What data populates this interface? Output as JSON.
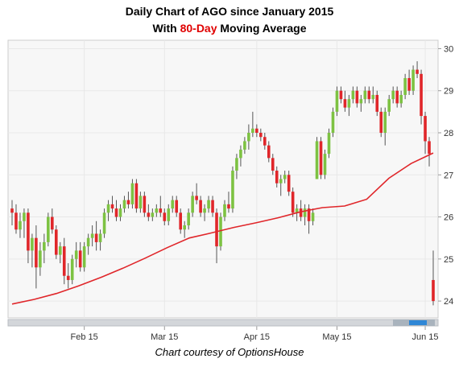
{
  "title_line1": "Daily Chart of AGO since January 2015",
  "title_line2_prefix": "With",
  "title_line2_highlight": "80-Day",
  "title_line2_suffix": "Moving Average",
  "credit": "Chart courtesy of OptionsHouse",
  "colors": {
    "up": "#7dc242",
    "down": "#e0262a",
    "moving_average": "#e0262a",
    "grid": "#e8e8e8",
    "plot_bg": "#f7f7f7",
    "title_highlight": "#e00000"
  },
  "chart_data": {
    "type": "candlestick",
    "ylim": [
      23.6,
      30.2
    ],
    "y_ticks": [
      24,
      25,
      26,
      27,
      28,
      29,
      30
    ],
    "x_ticks": [
      {
        "label": "Feb 15",
        "index": 18
      },
      {
        "label": "Mar 15",
        "index": 38
      },
      {
        "label": "Apr 15",
        "index": 61
      },
      {
        "label": "May 15",
        "index": 81
      },
      {
        "label": "Jun 15",
        "index": 103
      }
    ],
    "grid": true,
    "candles": [
      [
        26.2,
        26.4,
        25.8,
        26.1
      ],
      [
        26.1,
        26.3,
        25.6,
        25.7
      ],
      [
        25.7,
        26.1,
        25.5,
        25.9
      ],
      [
        25.9,
        26.2,
        25.5,
        26.1
      ],
      [
        26.1,
        26.2,
        24.9,
        25.2
      ],
      [
        25.2,
        25.6,
        24.8,
        25.5
      ],
      [
        25.5,
        25.8,
        24.3,
        24.8
      ],
      [
        24.8,
        25.4,
        24.6,
        25.2
      ],
      [
        25.2,
        25.6,
        24.9,
        25.4
      ],
      [
        25.4,
        26.1,
        25.3,
        26.0
      ],
      [
        26.0,
        26.2,
        25.6,
        25.7
      ],
      [
        25.7,
        25.8,
        25.0,
        25.1
      ],
      [
        25.1,
        25.4,
        24.9,
        25.3
      ],
      [
        25.3,
        25.5,
        24.4,
        24.6
      ],
      [
        24.6,
        24.9,
        24.3,
        24.5
      ],
      [
        24.5,
        25.1,
        24.4,
        25.0
      ],
      [
        25.0,
        25.4,
        24.8,
        25.2
      ],
      [
        25.2,
        25.4,
        24.7,
        24.8
      ],
      [
        24.8,
        25.4,
        24.7,
        25.3
      ],
      [
        25.3,
        25.6,
        25.1,
        25.5
      ],
      [
        25.5,
        25.8,
        25.3,
        25.6
      ],
      [
        25.6,
        25.9,
        25.2,
        25.4
      ],
      [
        25.4,
        25.7,
        25.2,
        25.6
      ],
      [
        25.6,
        26.2,
        25.5,
        26.1
      ],
      [
        26.1,
        26.4,
        25.9,
        26.3
      ],
      [
        26.3,
        26.5,
        26.1,
        26.2
      ],
      [
        26.2,
        26.4,
        25.9,
        26.0
      ],
      [
        26.0,
        26.3,
        25.9,
        26.2
      ],
      [
        26.2,
        26.5,
        26.1,
        26.4
      ],
      [
        26.4,
        26.6,
        26.2,
        26.3
      ],
      [
        26.3,
        26.9,
        26.2,
        26.8
      ],
      [
        26.8,
        26.9,
        26.1,
        26.2
      ],
      [
        26.2,
        26.6,
        26.1,
        26.5
      ],
      [
        26.5,
        26.6,
        26.0,
        26.1
      ],
      [
        26.1,
        26.3,
        25.9,
        26.0
      ],
      [
        26.0,
        26.2,
        25.9,
        26.1
      ],
      [
        26.1,
        26.3,
        26.0,
        26.2
      ],
      [
        26.2,
        26.5,
        26.0,
        26.1
      ],
      [
        26.1,
        26.2,
        25.8,
        25.9
      ],
      [
        25.9,
        26.3,
        25.8,
        26.2
      ],
      [
        26.2,
        26.5,
        26.1,
        26.4
      ],
      [
        26.4,
        26.5,
        26.0,
        26.1
      ],
      [
        26.1,
        26.2,
        25.6,
        25.7
      ],
      [
        25.7,
        25.9,
        25.5,
        25.8
      ],
      [
        25.8,
        26.2,
        25.7,
        26.1
      ],
      [
        26.1,
        26.6,
        26.0,
        26.5
      ],
      [
        26.5,
        26.8,
        26.3,
        26.4
      ],
      [
        26.4,
        26.5,
        26.0,
        26.1
      ],
      [
        26.1,
        26.3,
        25.9,
        26.2
      ],
      [
        26.2,
        26.5,
        26.1,
        26.4
      ],
      [
        26.4,
        26.5,
        26.0,
        26.1
      ],
      [
        26.1,
        26.2,
        24.9,
        25.3
      ],
      [
        25.3,
        26.1,
        25.2,
        26.0
      ],
      [
        26.0,
        26.4,
        25.9,
        26.3
      ],
      [
        26.3,
        26.6,
        26.1,
        26.2
      ],
      [
        26.2,
        27.2,
        26.1,
        27.1
      ],
      [
        27.1,
        27.5,
        26.9,
        27.4
      ],
      [
        27.4,
        27.7,
        27.2,
        27.6
      ],
      [
        27.6,
        27.9,
        27.5,
        27.8
      ],
      [
        27.8,
        28.2,
        27.6,
        28.0
      ],
      [
        28.0,
        28.5,
        27.9,
        28.1
      ],
      [
        28.1,
        28.2,
        27.9,
        28.0
      ],
      [
        28.0,
        28.1,
        27.8,
        27.9
      ],
      [
        27.9,
        28.0,
        27.6,
        27.7
      ],
      [
        27.7,
        27.8,
        27.3,
        27.4
      ],
      [
        27.4,
        27.5,
        27.0,
        27.1
      ],
      [
        27.1,
        27.2,
        26.7,
        26.8
      ],
      [
        26.8,
        27.0,
        26.5,
        26.9
      ],
      [
        26.9,
        27.1,
        26.8,
        27.0
      ],
      [
        27.0,
        27.1,
        26.5,
        26.6
      ],
      [
        26.6,
        26.7,
        26.0,
        26.1
      ],
      [
        26.1,
        26.3,
        25.9,
        26.2
      ],
      [
        26.2,
        26.4,
        25.9,
        26.0
      ],
      [
        26.0,
        26.3,
        25.8,
        26.2
      ],
      [
        26.2,
        26.3,
        25.6,
        25.9
      ],
      [
        25.9,
        26.2,
        25.8,
        26.1
      ],
      [
        26.9,
        27.9,
        26.9,
        27.8
      ],
      [
        27.8,
        27.9,
        26.9,
        27.0
      ],
      [
        27.0,
        27.6,
        26.9,
        27.5
      ],
      [
        27.5,
        28.1,
        27.4,
        28.0
      ],
      [
        28.0,
        28.6,
        27.9,
        28.5
      ],
      [
        28.5,
        29.1,
        28.4,
        29.0
      ],
      [
        29.0,
        29.1,
        28.7,
        28.8
      ],
      [
        28.8,
        29.0,
        28.5,
        28.6
      ],
      [
        28.6,
        28.9,
        28.4,
        28.8
      ],
      [
        28.8,
        29.1,
        28.7,
        29.0
      ],
      [
        29.0,
        29.1,
        28.6,
        28.7
      ],
      [
        28.7,
        28.9,
        28.5,
        28.8
      ],
      [
        28.8,
        29.1,
        28.7,
        29.0
      ],
      [
        29.0,
        29.1,
        28.7,
        28.8
      ],
      [
        28.8,
        29.1,
        28.7,
        28.9
      ],
      [
        28.9,
        29.0,
        28.4,
        28.5
      ],
      [
        28.5,
        28.6,
        27.9,
        28.0
      ],
      [
        28.0,
        28.6,
        27.7,
        28.5
      ],
      [
        28.5,
        28.9,
        28.4,
        28.8
      ],
      [
        28.8,
        29.1,
        28.7,
        29.0
      ],
      [
        29.0,
        29.1,
        28.6,
        28.7
      ],
      [
        28.7,
        29.0,
        28.6,
        28.9
      ],
      [
        28.9,
        29.4,
        28.8,
        29.3
      ],
      [
        29.3,
        29.5,
        28.9,
        29.0
      ],
      [
        29.0,
        29.6,
        28.9,
        29.5
      ],
      [
        29.5,
        29.7,
        29.3,
        29.4
      ],
      [
        29.4,
        29.5,
        28.2,
        28.4
      ],
      [
        28.4,
        28.5,
        27.5,
        27.8
      ],
      [
        27.8,
        27.9,
        27.2,
        27.5
      ],
      [
        24.5,
        25.2,
        23.9,
        24.0
      ]
    ],
    "moving_average": [
      23.93,
      24.04,
      24.18,
      24.36,
      24.56,
      24.78,
      25.02,
      25.27,
      25.5,
      25.62,
      25.75,
      25.86,
      25.98,
      26.12,
      26.22,
      26.26,
      26.42,
      26.92,
      27.27,
      27.52
    ]
  }
}
